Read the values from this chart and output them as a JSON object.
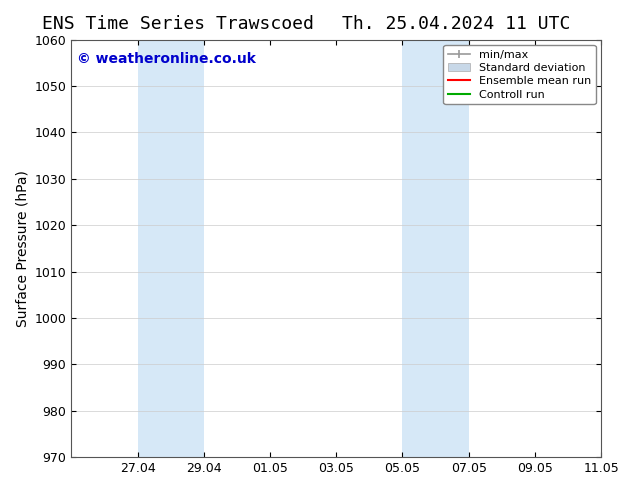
{
  "title_left": "ENS Time Series Trawscoed",
  "title_right": "Th. 25.04.2024 11 UTC",
  "ylabel": "Surface Pressure (hPa)",
  "ylim": [
    970,
    1060
  ],
  "yticks": [
    970,
    980,
    990,
    1000,
    1010,
    1020,
    1030,
    1040,
    1050,
    1060
  ],
  "x_start": "2024-04-25",
  "x_end": "2024-05-11",
  "xtick_labels": [
    "27.04",
    "29.04",
    "01.05",
    "03.05",
    "05.05",
    "07.05",
    "09.05",
    "11.05"
  ],
  "xtick_dates": [
    "2024-04-27",
    "2024-04-29",
    "2024-05-01",
    "2024-05-03",
    "2024-05-05",
    "2024-05-07",
    "2024-05-09",
    "2024-05-11"
  ],
  "shaded_bands": [
    {
      "x_start": "2024-04-27",
      "x_end": "2024-04-29"
    },
    {
      "x_start": "2024-05-05",
      "x_end": "2024-05-07"
    },
    {
      "x_start": "2024-05-11",
      "x_end": "2024-05-11.5"
    }
  ],
  "band_color": "#d6e8f7",
  "background_color": "#ffffff",
  "plot_bg_color": "#ffffff",
  "watermark_text": "© weatheronline.co.uk",
  "watermark_color": "#0000cc",
  "watermark_fontsize": 10,
  "legend_items": [
    {
      "label": "min/max",
      "color": "#aaaaaa",
      "lw": 1.5,
      "style": "minmax"
    },
    {
      "label": "Standard deviation",
      "color": "#c8d8e8",
      "lw": 6,
      "style": "band"
    },
    {
      "label": "Ensemble mean run",
      "color": "#ff0000",
      "lw": 1.5,
      "style": "line"
    },
    {
      "label": "Controll run",
      "color": "#00aa00",
      "lw": 1.5,
      "style": "line"
    }
  ],
  "title_fontsize": 13,
  "axis_label_fontsize": 10,
  "tick_fontsize": 9,
  "fig_bg_color": "#ffffff"
}
